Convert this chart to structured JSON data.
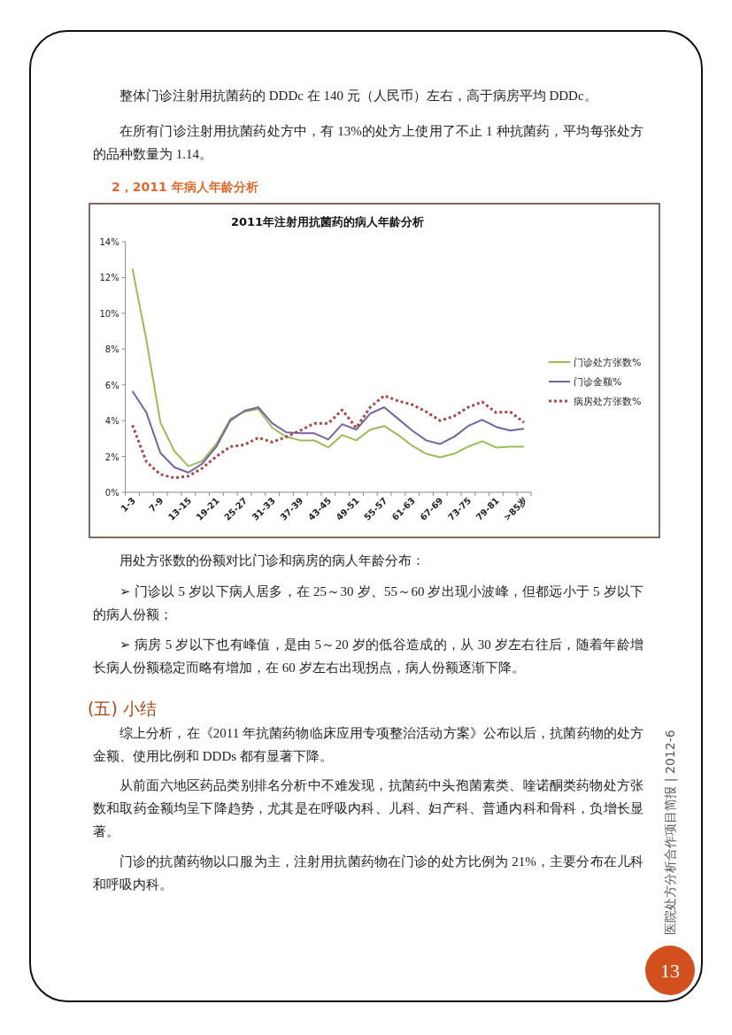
{
  "chart_data": {
    "type": "line",
    "title": "2011年注射用抗菌药的病人年龄分析",
    "categories": [
      "1-3",
      null,
      "7-9",
      null,
      "13-15",
      null,
      "19-21",
      null,
      "25-27",
      null,
      "31-33",
      null,
      "37-39",
      null,
      "43-45",
      null,
      "49-51",
      null,
      "55-57",
      null,
      "61-63",
      null,
      "67-69",
      null,
      "73-75",
      null,
      "79-81",
      null,
      ">85岁"
    ],
    "series": [
      {
        "name": "门诊处方张数%",
        "color": "#9bbb59",
        "line_style": "solid",
        "values": [
          12.5,
          8.5,
          3.9,
          2.3,
          1.45,
          1.75,
          2.7,
          4.1,
          4.5,
          4.65,
          3.6,
          3.1,
          2.9,
          2.9,
          2.5,
          3.2,
          2.9,
          3.5,
          3.7,
          3.2,
          2.6,
          2.15,
          1.95,
          2.15,
          2.55,
          2.85,
          2.5,
          2.55,
          2.55
        ]
      },
      {
        "name": "门诊金额%",
        "color": "#7464a0",
        "line_style": "solid",
        "values": [
          5.65,
          4.45,
          2.2,
          1.4,
          1.1,
          1.6,
          2.55,
          4.0,
          4.55,
          4.75,
          3.85,
          3.35,
          3.3,
          3.3,
          2.95,
          3.8,
          3.5,
          4.4,
          4.75,
          4.1,
          3.45,
          2.9,
          2.7,
          3.1,
          3.7,
          4.05,
          3.65,
          3.45,
          3.55
        ]
      },
      {
        "name": "病房处方张数%",
        "color": "#a44a4a",
        "line_style": "dotted",
        "values": [
          3.75,
          1.7,
          1.0,
          0.8,
          0.9,
          1.35,
          2.0,
          2.55,
          2.65,
          3.05,
          2.8,
          3.1,
          3.45,
          3.85,
          3.85,
          4.6,
          3.6,
          4.75,
          5.4,
          5.1,
          4.9,
          4.5,
          4.0,
          4.25,
          4.75,
          5.05,
          4.45,
          4.5,
          3.9
        ]
      }
    ],
    "ylim": [
      0,
      14
    ],
    "yticks": [
      {
        "value": 0,
        "label": "0%"
      },
      {
        "value": 2,
        "label": "2%"
      },
      {
        "value": 4,
        "label": "4%"
      },
      {
        "value": 6,
        "label": "6%"
      },
      {
        "value": 8,
        "label": "8%"
      },
      {
        "value": 10,
        "label": "10%"
      },
      {
        "value": 12,
        "label": "12%"
      },
      {
        "value": 14,
        "label": "14%"
      }
    ],
    "legend": "right",
    "annotations": [
      "整体门诊注射用抗菌药的 DDDc 在 140 元（人民币）左右，高于病房平均 DDDc。",
      "在所有门诊注射用抗菌药处方中，有 13%的处方上使用了不止 1 种抗菌药，平均每张处方的品种数量为 1.14。",
      "2，2011 年病人年龄分析",
      "用处方张数的份额对比门诊和病房的病人年龄分布：",
      "➢ 门诊以 5 岁以下病人居多，在 25～30 岁、55～60 岁出现小波峰，但都远小于 5 岁以下的病人份额；",
      "➢ 病房 5 岁以下也有峰值，是由 5～20 岁的低谷造成的，从 30 岁左右往后，随着年龄增长病人份额稳定而略有增加，在 60 岁左右出现拐点，病人份额逐渐下降。",
      "(五) 小结",
      "综上分析，在《2011 年抗菌药物临床应用专项整治活动方案》公布以后，抗菌药物的处方金额、使用比例和 DDDs 都有显著下降。",
      "从前面六地区药品类别排名分析中不难发现，抗菌药中头孢菌素类、喹诺酮类药物处方张数和取药金额均呈下降趋势，尤其是在呼吸内科、儿科、妇产科、普通内科和骨科，负增长显著。",
      "门诊的抗菌药物以口服为主，注射用抗菌药物在门诊的处方比例为 21%，主要分布在儿科和呼吸内科。",
      "医院处方分析合作项目简报 | 2012-6",
      "13"
    ]
  }
}
